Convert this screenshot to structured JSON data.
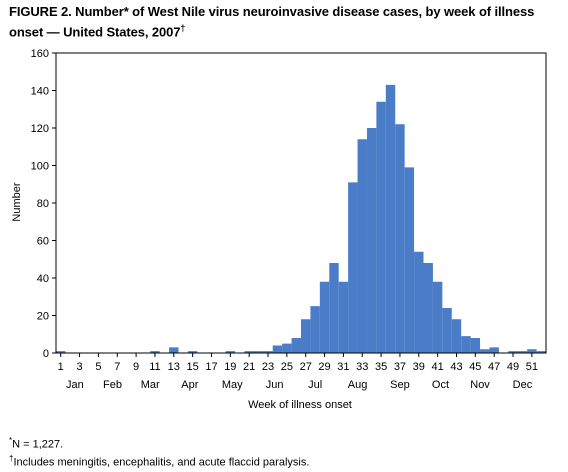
{
  "figure": {
    "title": "FIGURE 2. Number* of West Nile virus neuroinvasive disease cases, by week of illness onset — United States, 2007",
    "title_mark": "†"
  },
  "chart_data": {
    "type": "bar",
    "title": "",
    "xlabel": "Week of illness onset",
    "ylabel": "Number",
    "ylim": [
      0,
      160
    ],
    "yticks": [
      0,
      20,
      40,
      60,
      80,
      100,
      120,
      140,
      160
    ],
    "xlim": [
      0.5,
      52.5
    ],
    "week_tick_labels": [
      "1",
      "3",
      "5",
      "7",
      "9",
      "11",
      "13",
      "15",
      "17",
      "19",
      "21",
      "23",
      "25",
      "27",
      "29",
      "31",
      "33",
      "35",
      "37",
      "39",
      "41",
      "43",
      "45",
      "47",
      "49",
      "51"
    ],
    "months": [
      {
        "label": "Jan",
        "week": 2.5
      },
      {
        "label": "Feb",
        "week": 6.5
      },
      {
        "label": "Mar",
        "week": 10.5
      },
      {
        "label": "Apr",
        "week": 14.7
      },
      {
        "label": "May",
        "week": 19.2
      },
      {
        "label": "Jun",
        "week": 23.7
      },
      {
        "label": "Jul",
        "week": 28
      },
      {
        "label": "Aug",
        "week": 32.5
      },
      {
        "label": "Sep",
        "week": 37
      },
      {
        "label": "Oct",
        "week": 41.3
      },
      {
        "label": "Nov",
        "week": 45.5
      },
      {
        "label": "Dec",
        "week": 50
      }
    ],
    "grid": false,
    "legend": "none",
    "bar_color": "#4a7cc7",
    "x": [
      1,
      2,
      3,
      4,
      5,
      6,
      7,
      8,
      9,
      10,
      11,
      12,
      13,
      14,
      15,
      16,
      17,
      18,
      19,
      20,
      21,
      22,
      23,
      24,
      25,
      26,
      27,
      28,
      29,
      30,
      31,
      32,
      33,
      34,
      35,
      36,
      37,
      38,
      39,
      40,
      41,
      42,
      43,
      44,
      45,
      46,
      47,
      48,
      49,
      50,
      51,
      52
    ],
    "values": [
      1,
      0,
      0,
      0,
      0,
      0,
      0,
      0,
      0,
      0,
      1,
      0,
      3,
      0,
      1,
      0,
      0,
      0,
      1,
      0,
      1,
      1,
      1,
      4,
      5,
      8,
      18,
      25,
      38,
      48,
      38,
      91,
      114,
      120,
      134,
      143,
      122,
      99,
      54,
      48,
      38,
      24,
      18,
      9,
      8,
      2,
      3,
      0,
      1,
      1,
      2,
      1
    ]
  },
  "footnotes": [
    {
      "mark": "*",
      "text": "N = 1,227."
    },
    {
      "mark": "†",
      "text": "Includes meningitis, encephalitis, and acute flaccid paralysis."
    }
  ]
}
